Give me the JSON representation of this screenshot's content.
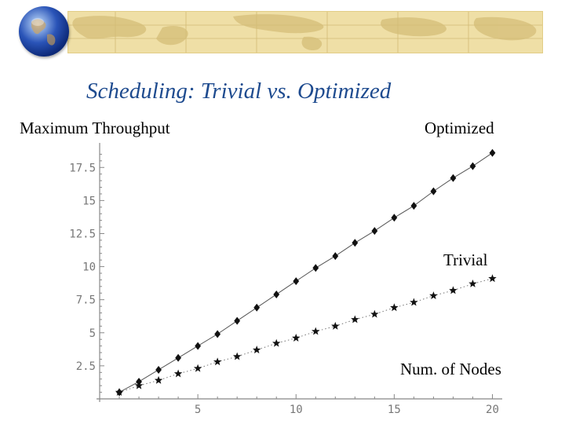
{
  "slide": {
    "title": "Scheduling: Trivial vs. Optimized"
  },
  "labels": {
    "ylabel": "Maximum Throughput",
    "optimized": "Optimized",
    "trivial": "Trivial",
    "xlabel": "Num. of Nodes"
  },
  "colors": {
    "title": "#1e4b8f",
    "banner": "#efdfa6",
    "axis": "#888888",
    "series": "#111111"
  },
  "chart_data": {
    "type": "scatter",
    "xlabel": "Num. of Nodes",
    "ylabel": "Maximum Throughput",
    "xlim": [
      0,
      20.5
    ],
    "ylim": [
      0,
      19
    ],
    "xticks": [
      5,
      10,
      15,
      20
    ],
    "yticks": [
      2.5,
      5,
      7.5,
      10,
      12.5,
      15,
      17.5
    ],
    "grid": false,
    "series": [
      {
        "name": "Optimized",
        "marker": "diamond",
        "line": "solid",
        "x": [
          1,
          2,
          3,
          4,
          5,
          6,
          7,
          8,
          9,
          10,
          11,
          12,
          13,
          14,
          15,
          16,
          17,
          18,
          19,
          20
        ],
        "y": [
          0.5,
          1.3,
          2.2,
          3.1,
          4.0,
          4.9,
          5.9,
          6.9,
          7.9,
          8.9,
          9.9,
          10.8,
          11.8,
          12.7,
          13.7,
          14.6,
          15.7,
          16.7,
          17.6,
          18.6
        ]
      },
      {
        "name": "Trivial",
        "marker": "star",
        "line": "dotted",
        "x": [
          1,
          2,
          3,
          4,
          5,
          6,
          7,
          8,
          9,
          10,
          11,
          12,
          13,
          14,
          15,
          16,
          17,
          18,
          19,
          20
        ],
        "y": [
          0.5,
          1.0,
          1.4,
          1.9,
          2.3,
          2.8,
          3.2,
          3.7,
          4.2,
          4.6,
          5.1,
          5.5,
          6.0,
          6.4,
          6.9,
          7.3,
          7.8,
          8.2,
          8.7,
          9.1
        ]
      }
    ]
  }
}
